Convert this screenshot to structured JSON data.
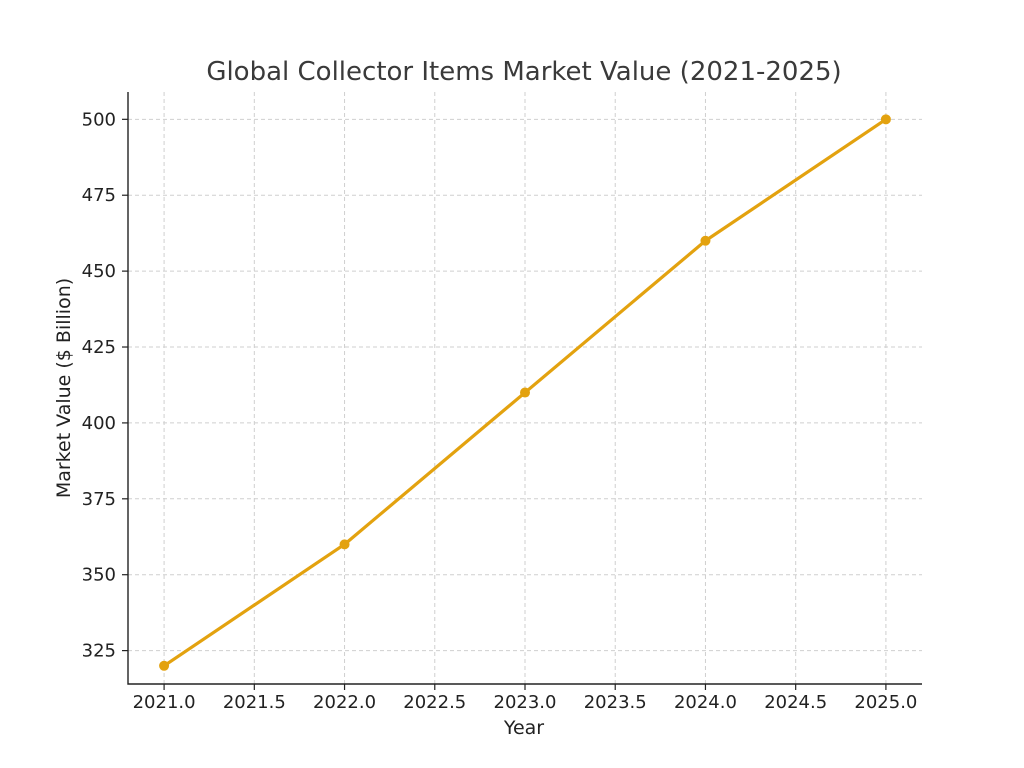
{
  "chart_data": {
    "type": "line",
    "title": "Global Collector Items Market Value (2021-2025)",
    "xlabel": "Year",
    "ylabel": "Market Value ($ Billion)",
    "x": [
      2021,
      2022,
      2023,
      2024,
      2025
    ],
    "series": [
      {
        "values": [
          320,
          360,
          410,
          460,
          500
        ],
        "color": "#e3a20f"
      }
    ],
    "xlim": [
      2020.8,
      2025.2
    ],
    "ylim": [
      314,
      509
    ],
    "xticks": [
      "2021.0",
      "2021.5",
      "2022.0",
      "2022.5",
      "2023.0",
      "2023.5",
      "2024.0",
      "2024.5",
      "2025.0"
    ],
    "yticks": [
      "325",
      "350",
      "375",
      "400",
      "425",
      "450",
      "475",
      "500"
    ],
    "grid": true,
    "legend": "none"
  }
}
